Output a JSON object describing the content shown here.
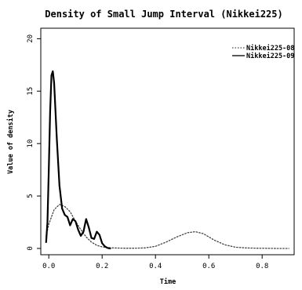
{
  "chart_data": {
    "type": "line",
    "title": "Density of Small Jump Interval (Nikkei225)",
    "xlabel": "Time",
    "ylabel": "Value of density",
    "xlim": [
      -0.03,
      0.92
    ],
    "ylim": [
      -0.6,
      21
    ],
    "x_ticks": [
      0.0,
      0.2,
      0.4,
      0.6,
      0.8
    ],
    "x_tick_labels": [
      "0.0",
      "0.2",
      "0.4",
      "0.6",
      "0.8"
    ],
    "y_ticks": [
      0,
      5,
      10,
      15,
      20
    ],
    "y_tick_labels": [
      "0",
      "5",
      "10",
      "15",
      "20"
    ],
    "grid": false,
    "legend_position": "top-right",
    "series": [
      {
        "name": "Nikkei225-08",
        "style": "dotted",
        "x": [
          -0.01,
          0.0,
          0.02,
          0.04,
          0.06,
          0.08,
          0.1,
          0.12,
          0.14,
          0.16,
          0.18,
          0.2,
          0.22,
          0.24,
          0.28,
          0.32,
          0.36,
          0.4,
          0.44,
          0.48,
          0.52,
          0.55,
          0.58,
          0.62,
          0.66,
          0.7,
          0.74,
          0.78,
          0.82,
          0.86,
          0.9
        ],
        "y": [
          1.2,
          2.3,
          3.7,
          4.2,
          4.0,
          3.5,
          2.6,
          1.8,
          1.1,
          0.6,
          0.3,
          0.15,
          0.08,
          0.05,
          0.02,
          0.02,
          0.05,
          0.2,
          0.6,
          1.1,
          1.5,
          1.6,
          1.4,
          0.8,
          0.35,
          0.12,
          0.05,
          0.02,
          0.01,
          0.0,
          0.0
        ]
      },
      {
        "name": "Nikkei225-09",
        "style": "solid",
        "x": [
          -0.01,
          -0.005,
          0.0,
          0.005,
          0.01,
          0.015,
          0.02,
          0.03,
          0.04,
          0.05,
          0.06,
          0.07,
          0.08,
          0.09,
          0.1,
          0.11,
          0.12,
          0.13,
          0.14,
          0.15,
          0.16,
          0.17,
          0.18,
          0.19,
          0.2,
          0.21,
          0.22,
          0.23
        ],
        "y": [
          0.6,
          2.5,
          7.5,
          13.0,
          16.5,
          16.9,
          15.8,
          10.5,
          6.0,
          3.8,
          3.2,
          3.0,
          2.2,
          2.8,
          2.6,
          1.8,
          1.2,
          1.6,
          2.8,
          2.0,
          1.0,
          0.9,
          1.6,
          1.3,
          0.5,
          0.2,
          0.05,
          0.0
        ]
      }
    ]
  }
}
